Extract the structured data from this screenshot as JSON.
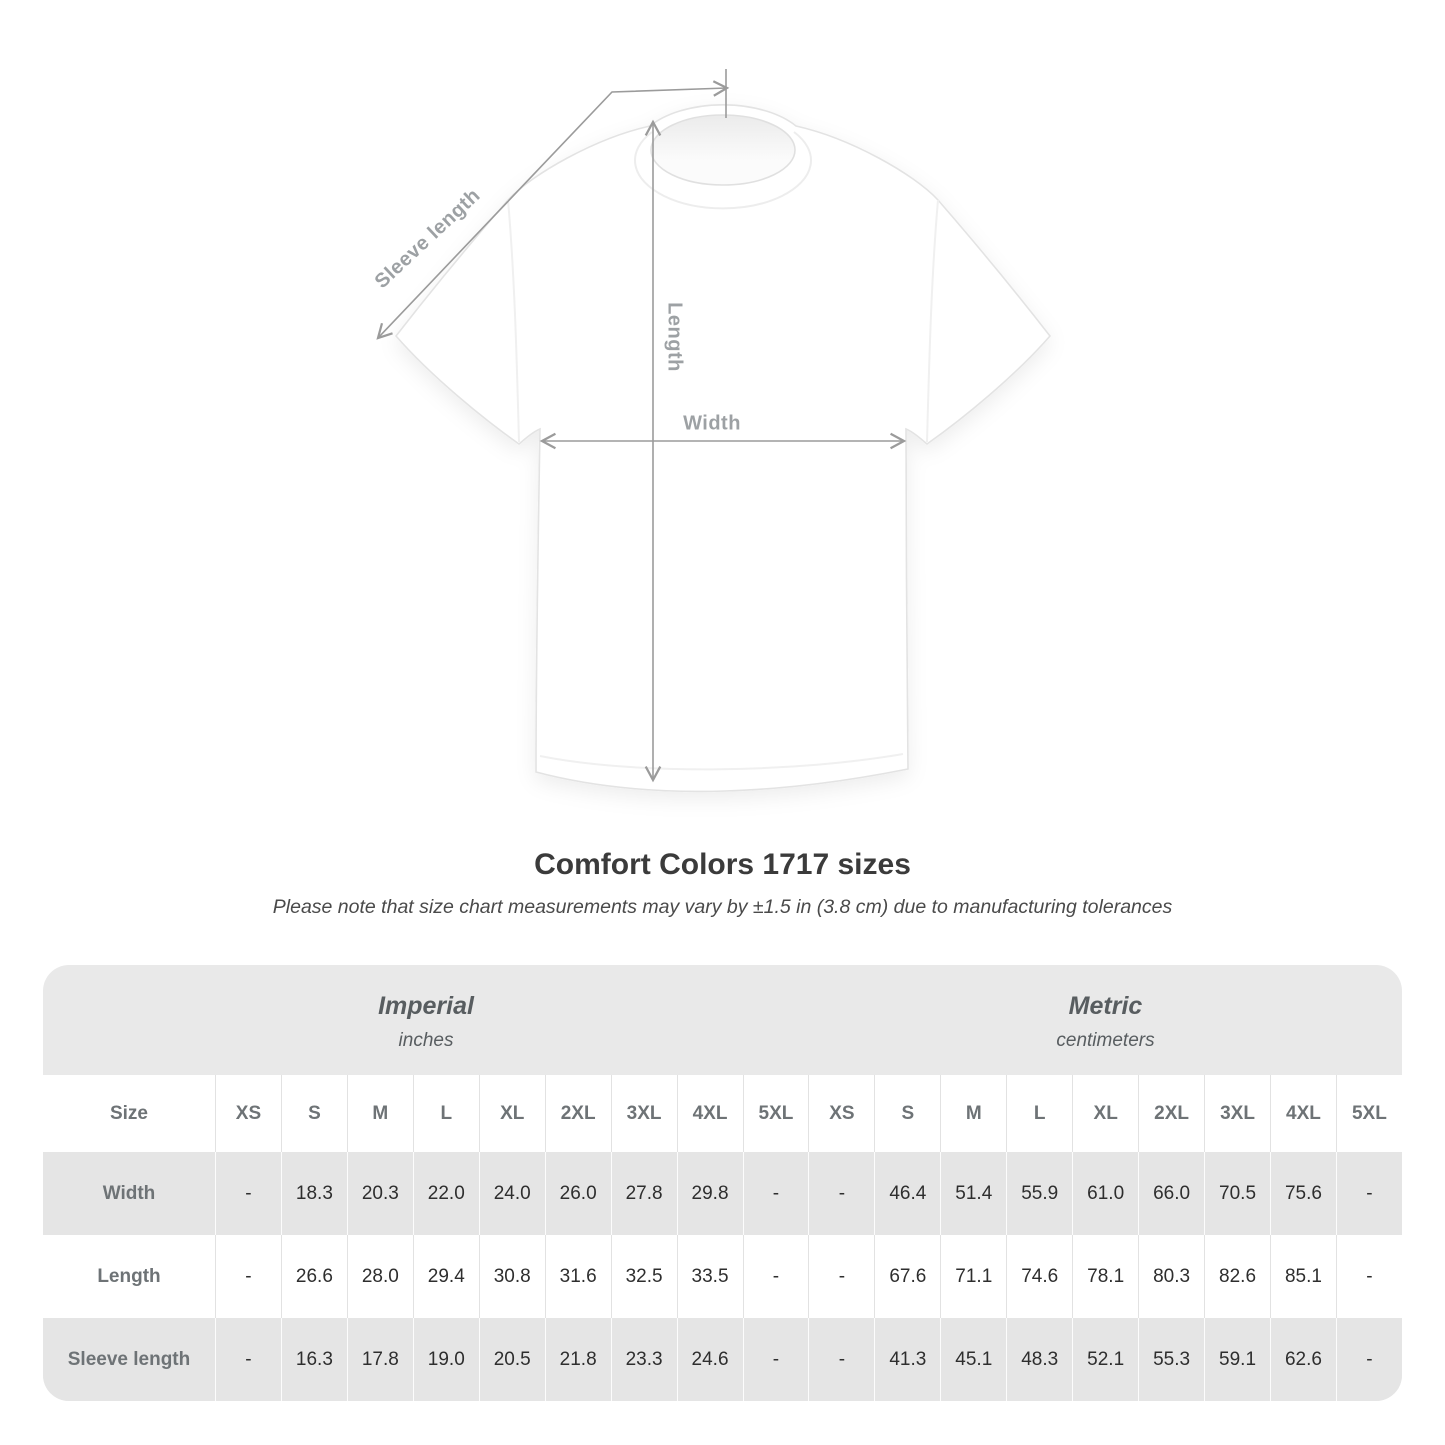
{
  "title": "Comfort Colors 1717 sizes",
  "subtitle": "Please note that size chart measurements may vary by ±1.5 in (3.8 cm) due to manufacturing tolerances",
  "diagram": {
    "labels": {
      "sleeve_length": "Sleeve length",
      "length": "Length",
      "width": "Width"
    },
    "colors": {
      "annotation_line": "#9b9b9b",
      "annotation_text": "#9da1a4",
      "shirt_fill": "#ffffff",
      "shirt_outline": "#e3e3e3"
    }
  },
  "table": {
    "size_header": "Size",
    "unit_groups": [
      {
        "name": "Imperial",
        "unit": "inches"
      },
      {
        "name": "Metric",
        "unit": "centimeters"
      }
    ],
    "sizes": [
      "XS",
      "S",
      "M",
      "L",
      "XL",
      "2XL",
      "3XL",
      "4XL",
      "5XL"
    ],
    "rows": [
      {
        "label": "Width",
        "imperial": [
          "-",
          "18.3",
          "20.3",
          "22.0",
          "24.0",
          "26.0",
          "27.8",
          "29.8",
          "-"
        ],
        "metric": [
          "-",
          "46.4",
          "51.4",
          "55.9",
          "61.0",
          "66.0",
          "70.5",
          "75.6",
          "-"
        ]
      },
      {
        "label": "Length",
        "imperial": [
          "-",
          "26.6",
          "28.0",
          "29.4",
          "30.8",
          "31.6",
          "32.5",
          "33.5",
          "-"
        ],
        "metric": [
          "-",
          "67.6",
          "71.1",
          "74.6",
          "78.1",
          "80.3",
          "82.6",
          "85.1",
          "-"
        ]
      },
      {
        "label": "Sleeve length",
        "imperial": [
          "-",
          "16.3",
          "17.8",
          "19.0",
          "20.5",
          "21.8",
          "23.3",
          "24.6",
          "-"
        ],
        "metric": [
          "-",
          "41.3",
          "45.1",
          "48.3",
          "52.1",
          "55.3",
          "59.1",
          "62.6",
          "-"
        ]
      }
    ],
    "colors": {
      "container_bg": "#e9e9e9",
      "row_gray": "#e5e5e5",
      "row_white": "#ffffff",
      "header_text": "#6e7376",
      "value_text": "#2e2e2e"
    }
  },
  "chart_data": {
    "type": "table",
    "title": "Comfort Colors 1717 sizes",
    "note": "Please note that size chart measurements may vary by ±1.5 in (3.8 cm) due to manufacturing tolerances",
    "columns": [
      "XS",
      "S",
      "M",
      "L",
      "XL",
      "2XL",
      "3XL",
      "4XL",
      "5XL"
    ],
    "unit_groups": [
      "Imperial (inches)",
      "Metric (centimeters)"
    ],
    "rows": [
      {
        "label": "Width",
        "imperial_in": [
          null,
          18.3,
          20.3,
          22.0,
          24.0,
          26.0,
          27.8,
          29.8,
          null
        ],
        "metric_cm": [
          null,
          46.4,
          51.4,
          55.9,
          61.0,
          66.0,
          70.5,
          75.6,
          null
        ]
      },
      {
        "label": "Length",
        "imperial_in": [
          null,
          26.6,
          28.0,
          29.4,
          30.8,
          31.6,
          32.5,
          33.5,
          null
        ],
        "metric_cm": [
          null,
          67.6,
          71.1,
          74.6,
          78.1,
          80.3,
          82.6,
          85.1,
          null
        ]
      },
      {
        "label": "Sleeve length",
        "imperial_in": [
          null,
          16.3,
          17.8,
          19.0,
          20.5,
          21.8,
          23.3,
          24.6,
          null
        ],
        "metric_cm": [
          null,
          41.3,
          45.1,
          48.3,
          52.1,
          55.3,
          59.1,
          62.6,
          null
        ]
      }
    ]
  }
}
